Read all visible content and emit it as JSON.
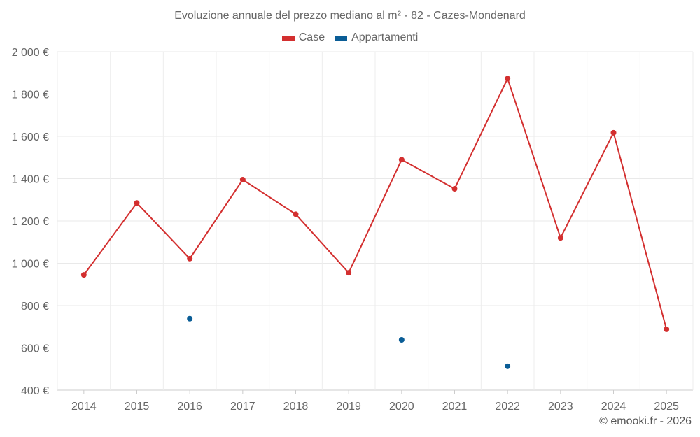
{
  "chart_data": {
    "type": "line",
    "title": "Evoluzione annuale del prezzo mediano al m² - 82 - Cazes-Mondenard",
    "x": [
      "2014",
      "2015",
      "2016",
      "2017",
      "2018",
      "2019",
      "2020",
      "2021",
      "2022",
      "2023",
      "2024",
      "2025"
    ],
    "ylim": [
      400,
      2000
    ],
    "yticks": [
      400,
      600,
      800,
      1000,
      1200,
      1400,
      1600,
      1800,
      2000
    ],
    "ytick_labels": [
      "400 €",
      "600 €",
      "800 €",
      "1 000 €",
      "1 200 €",
      "1 400 €",
      "1 600 €",
      "1 800 €",
      "2 000 €"
    ],
    "grid": true,
    "legend_position": "top-center",
    "series": [
      {
        "name": "Case",
        "color": "#d32f2f",
        "show_line": true,
        "values": [
          945,
          1285,
          1022,
          1395,
          1232,
          955,
          1490,
          1352,
          1873,
          1120,
          1617,
          688
        ]
      },
      {
        "name": "Appartamenti",
        "color": "#0a5d96",
        "show_line": false,
        "values": [
          null,
          null,
          738,
          null,
          null,
          null,
          638,
          null,
          513,
          null,
          null,
          null
        ]
      }
    ]
  },
  "credit": "© emooki.fr - 2026"
}
